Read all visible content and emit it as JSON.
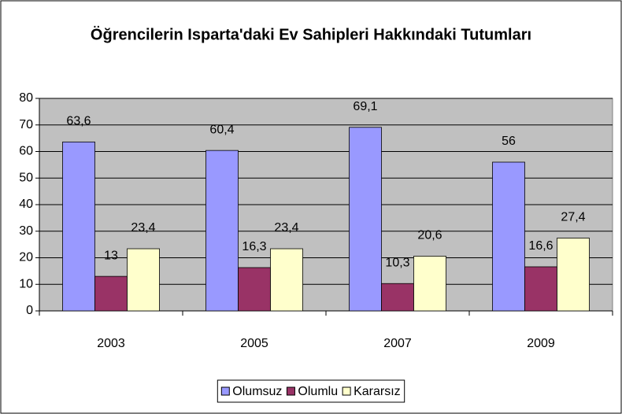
{
  "chart_data": {
    "type": "bar",
    "title": "Öğrencilerin Isparta'daki Ev Sahipleri Hakkındaki Tutumları",
    "categories": [
      "2003",
      "2005",
      "2007",
      "2009"
    ],
    "series": [
      {
        "name": "Olumsuz",
        "color": "#9999ff",
        "values": [
          63.6,
          60.4,
          69.1,
          56
        ],
        "value_labels": [
          "63,6",
          "60,4",
          "69,1",
          "56"
        ]
      },
      {
        "name": "Olumlu",
        "color": "#993366",
        "values": [
          13,
          16.3,
          10.3,
          16.6
        ],
        "value_labels": [
          "13",
          "16,3",
          "10,3",
          "16,6"
        ]
      },
      {
        "name": "Kararsız",
        "color": "#ffffcc",
        "values": [
          23.4,
          23.4,
          20.6,
          27.4
        ],
        "value_labels": [
          "23,4",
          "23,4",
          "20,6",
          "27,4"
        ]
      }
    ],
    "ylim": [
      0,
      80
    ],
    "yticks": [
      0,
      10,
      20,
      30,
      40,
      50,
      60,
      70,
      80
    ],
    "grid": true,
    "legend": "bottom"
  }
}
